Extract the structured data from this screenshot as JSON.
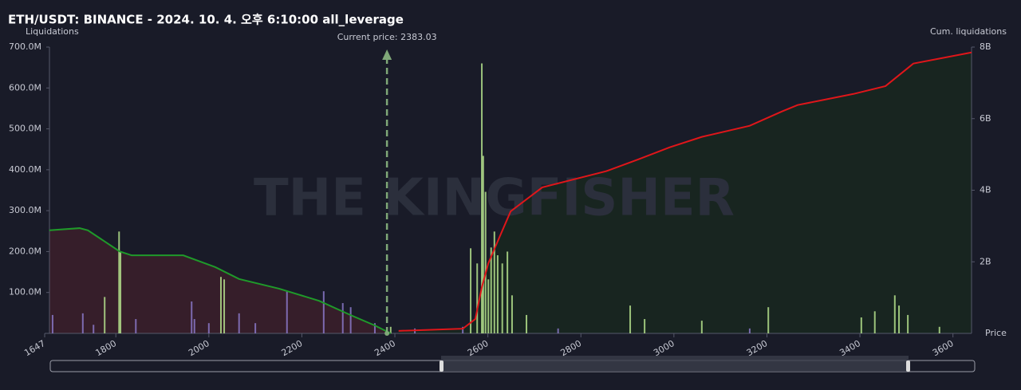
{
  "chart_data": {
    "type": "liquidation-map",
    "title": "ETH/USDT: BINANCE - 2024. 10. 4. 오후 6:10:00 all_leverage",
    "y_label": "Liquidations",
    "y2_label": "Cum. liquidations",
    "x_label": "Price",
    "watermark": "THE KINGFISHER",
    "current_price": {
      "value": 2383.03,
      "label": "Current price: 2383.03"
    },
    "xlim": [
      1647,
      3640
    ],
    "xticks": [
      1647,
      1800,
      2000,
      2200,
      2400,
      2600,
      2800,
      3000,
      3200,
      3400,
      3600
    ],
    "ylim": [
      0,
      700000000
    ],
    "yticks": [
      {
        "value": 100000000,
        "label": "100.0M"
      },
      {
        "value": 200000000,
        "label": "200.0M"
      },
      {
        "value": 300000000,
        "label": "300.0M"
      },
      {
        "value": 400000000,
        "label": "400.0M"
      },
      {
        "value": 500000000,
        "label": "500.0M"
      },
      {
        "value": 600000000,
        "label": "600.0M"
      },
      {
        "value": 700000000,
        "label": "700.0M"
      }
    ],
    "y2lim": [
      0,
      8000000000
    ],
    "y2ticks": [
      {
        "value": 2000000000,
        "label": "2B"
      },
      {
        "value": 4000000000,
        "label": "4B"
      },
      {
        "value": 6000000000,
        "label": "6B"
      },
      {
        "value": 8000000000,
        "label": "8B"
      }
    ],
    "bars": [
      {
        "color": "#8a78c8",
        "x": [
          1664,
          1729,
          1752,
          1843,
          1963,
          1969,
          2000,
          2065,
          2100,
          2168,
          2247,
          2288,
          2305,
          2357,
          2443,
          2546,
          2751,
          3163
        ],
        "values": [
          45000000,
          49000000,
          21000000,
          35000000,
          78000000,
          35000000,
          25000000,
          49000000,
          25000000,
          103000000,
          103000000,
          74000000,
          64000000,
          25000000,
          12000000,
          16000000,
          12000000,
          12000000
        ]
      },
      {
        "color": "#b4e08c",
        "x": [
          1776,
          1807,
          1810,
          2026,
          2033,
          2391,
          2563,
          2577,
          2587,
          2590,
          2595,
          2601,
          2607,
          2614,
          2621,
          2631,
          2642,
          2652,
          2683,
          2906,
          2937,
          3060,
          3203,
          3403,
          3432,
          3475,
          3484,
          3503,
          3571
        ],
        "values": [
          89000000,
          249000000,
          200000000,
          138000000,
          132000000,
          16000000,
          208000000,
          171000000,
          660000000,
          434000000,
          346000000,
          132000000,
          210000000,
          249000000,
          191000000,
          171000000,
          200000000,
          93000000,
          45000000,
          68000000,
          35000000,
          31000000,
          64000000,
          39000000,
          54000000,
          93000000,
          68000000,
          45000000,
          16000000
        ]
      }
    ],
    "series": [
      {
        "color": "#1f9a2a",
        "fill": "#3a1f2a",
        "axis": "y2",
        "x": [
          1657,
          1722,
          1740,
          1808,
          1834,
          1945,
          2014,
          2065,
          2151,
          2237,
          2305,
          2357,
          2391
        ],
        "values": [
          2880000000,
          2940000000,
          2880000000,
          2290000000,
          2180000000,
          2180000000,
          1850000000,
          1520000000,
          1250000000,
          910000000,
          510000000,
          220000000,
          0
        ]
      },
      {
        "color": "#e0161a",
        "fill": "#18271f",
        "axis": "y2",
        "x": [
          2408,
          2546,
          2573,
          2587,
          2601,
          2623,
          2649,
          2717,
          2854,
          2923,
          2991,
          3060,
          3163,
          3232,
          3266,
          3386,
          3455,
          3515,
          3640
        ],
        "values": [
          70000000,
          130000000,
          400000000,
          1290000000,
          1960000000,
          2630000000,
          3410000000,
          4080000000,
          4530000000,
          4860000000,
          5200000000,
          5490000000,
          5800000000,
          6200000000,
          6380000000,
          6690000000,
          6910000000,
          7540000000,
          7850000000
        ]
      }
    ]
  }
}
